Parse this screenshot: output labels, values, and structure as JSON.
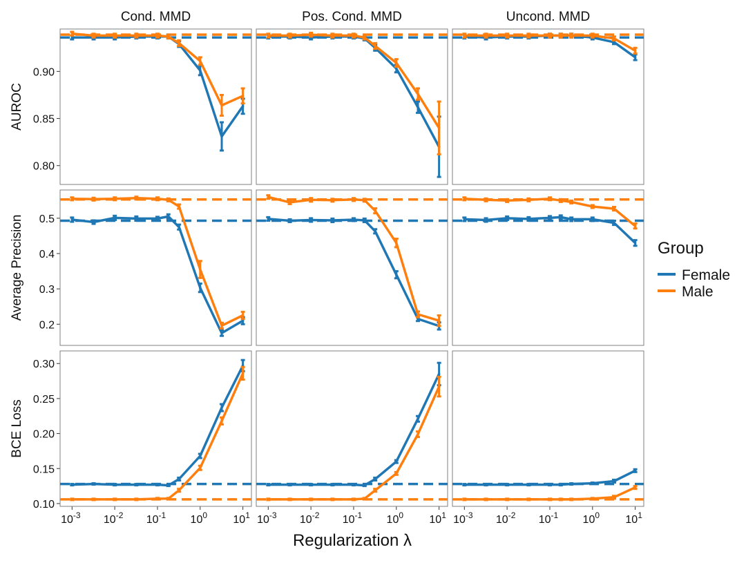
{
  "colors": {
    "Female": "#1f77b4",
    "Male": "#ff7f0e"
  },
  "chart_data": {
    "type": "line",
    "facet_columns": [
      "Cond. MMD",
      "Pos. Cond. MMD",
      "Uncond. MMD"
    ],
    "facet_rows": [
      "AUROC",
      "Average Precision",
      "BCE Loss"
    ],
    "xlabel": "Regularization λ",
    "x_scale": "log",
    "x_tick_exponents": [
      "-3",
      "-2",
      "-1",
      "0",
      "1"
    ],
    "x": [
      0.001,
      0.0032,
      0.01,
      0.032,
      0.1,
      0.18,
      0.32,
      1,
      3.2,
      10
    ],
    "legend": {
      "title": "Group",
      "position": "right",
      "entries": [
        "Female",
        "Male"
      ]
    },
    "y_ticks": {
      "AUROC": [
        "0.80",
        "0.85",
        "0.90"
      ],
      "Average Precision": [
        "0.2",
        "0.3",
        "0.4",
        "0.5"
      ],
      "BCE Loss": [
        "0.10",
        "0.15",
        "0.20",
        "0.25",
        "0.30"
      ]
    },
    "y_ranges": {
      "AUROC": [
        0.78,
        0.945
      ],
      "Average Precision": [
        0.14,
        0.58
      ],
      "BCE Loss": [
        0.096,
        0.318
      ]
    },
    "baselines": {
      "AUROC": {
        "Female": 0.936,
        "Male": 0.939
      },
      "Average Precision": {
        "Female": 0.493,
        "Male": 0.553
      },
      "BCE Loss": {
        "Female": 0.128,
        "Male": 0.106
      }
    },
    "panels": [
      {
        "row": "AUROC",
        "column": "Cond. MMD",
        "series": [
          {
            "name": "Female",
            "y": [
              0.936,
              0.936,
              0.936,
              0.937,
              0.937,
              0.937,
              0.929,
              0.901,
              0.831,
              0.863
            ],
            "err": [
              0.002,
              0.002,
              0.002,
              0.002,
              0.002,
              0.002,
              0.003,
              0.005,
              0.015,
              0.008
            ]
          },
          {
            "name": "Male",
            "y": [
              0.94,
              0.938,
              0.938,
              0.938,
              0.938,
              0.937,
              0.93,
              0.911,
              0.864,
              0.874
            ],
            "err": [
              0.002,
              0.002,
              0.002,
              0.002,
              0.002,
              0.002,
              0.003,
              0.004,
              0.011,
              0.008
            ]
          }
        ]
      },
      {
        "row": "AUROC",
        "column": "Pos. Cond. MMD",
        "series": [
          {
            "name": "Female",
            "y": [
              0.937,
              0.937,
              0.936,
              0.937,
              0.937,
              0.935,
              0.925,
              0.903,
              0.862,
              0.82
            ],
            "err": [
              0.002,
              0.002,
              0.002,
              0.002,
              0.002,
              0.002,
              0.003,
              0.004,
              0.006,
              0.032
            ]
          },
          {
            "name": "Male",
            "y": [
              0.938,
              0.938,
              0.939,
              0.938,
              0.938,
              0.936,
              0.927,
              0.909,
              0.876,
              0.84
            ],
            "err": [
              0.002,
              0.002,
              0.002,
              0.002,
              0.002,
              0.002,
              0.003,
              0.004,
              0.006,
              0.028
            ]
          }
        ]
      },
      {
        "row": "AUROC",
        "column": "Uncond. MMD",
        "series": [
          {
            "name": "Female",
            "y": [
              0.937,
              0.936,
              0.937,
              0.937,
              0.938,
              0.938,
              0.938,
              0.936,
              0.931,
              0.915
            ],
            "err": [
              0.002,
              0.002,
              0.002,
              0.002,
              0.002,
              0.002,
              0.002,
              0.002,
              0.002,
              0.003
            ]
          },
          {
            "name": "Male",
            "y": [
              0.938,
              0.938,
              0.938,
              0.938,
              0.938,
              0.938,
              0.938,
              0.938,
              0.935,
              0.922
            ],
            "err": [
              0.002,
              0.002,
              0.002,
              0.002,
              0.002,
              0.002,
              0.002,
              0.002,
              0.002,
              0.003
            ]
          }
        ]
      },
      {
        "row": "Average Precision",
        "column": "Cond. MMD",
        "series": [
          {
            "name": "Female",
            "y": [
              0.496,
              0.489,
              0.501,
              0.499,
              0.499,
              0.505,
              0.475,
              0.303,
              0.175,
              0.21
            ],
            "err": [
              0.006,
              0.005,
              0.006,
              0.006,
              0.005,
              0.006,
              0.007,
              0.012,
              0.008,
              0.01
            ]
          },
          {
            "name": "Male",
            "y": [
              0.555,
              0.554,
              0.555,
              0.557,
              0.555,
              0.552,
              0.533,
              0.355,
              0.196,
              0.225
            ],
            "err": [
              0.004,
              0.004,
              0.004,
              0.004,
              0.004,
              0.004,
              0.006,
              0.024,
              0.008,
              0.01
            ]
          }
        ]
      },
      {
        "row": "Average Precision",
        "column": "Pos. Cond. MMD",
        "series": [
          {
            "name": "Female",
            "y": [
              0.498,
              0.493,
              0.495,
              0.494,
              0.496,
              0.494,
              0.463,
              0.34,
              0.215,
              0.195
            ],
            "err": [
              0.005,
              0.004,
              0.005,
              0.005,
              0.004,
              0.005,
              0.006,
              0.01,
              0.006,
              0.01
            ]
          },
          {
            "name": "Male",
            "y": [
              0.56,
              0.545,
              0.552,
              0.551,
              0.553,
              0.551,
              0.521,
              0.43,
              0.228,
              0.21
            ],
            "err": [
              0.005,
              0.005,
              0.005,
              0.004,
              0.004,
              0.004,
              0.007,
              0.012,
              0.008,
              0.015
            ]
          }
        ]
      },
      {
        "row": "Average Precision",
        "column": "Uncond. MMD",
        "series": [
          {
            "name": "Female",
            "y": [
              0.497,
              0.495,
              0.5,
              0.498,
              0.501,
              0.503,
              0.497,
              0.497,
              0.487,
              0.43
            ],
            "err": [
              0.005,
              0.005,
              0.005,
              0.005,
              0.005,
              0.005,
              0.005,
              0.005,
              0.006,
              0.008
            ]
          },
          {
            "name": "Male",
            "y": [
              0.555,
              0.552,
              0.55,
              0.552,
              0.555,
              0.55,
              0.546,
              0.533,
              0.527,
              0.478
            ],
            "err": [
              0.004,
              0.004,
              0.004,
              0.004,
              0.004,
              0.004,
              0.004,
              0.004,
              0.005,
              0.007
            ]
          }
        ]
      },
      {
        "row": "BCE Loss",
        "column": "Cond. MMD",
        "series": [
          {
            "name": "Female",
            "y": [
              0.127,
              0.128,
              0.127,
              0.127,
              0.127,
              0.126,
              0.135,
              0.168,
              0.237,
              0.297
            ],
            "err": [
              0.001,
              0.001,
              0.001,
              0.001,
              0.001,
              0.001,
              0.002,
              0.003,
              0.005,
              0.008
            ]
          },
          {
            "name": "Male",
            "y": [
              0.106,
              0.106,
              0.106,
              0.106,
              0.107,
              0.107,
              0.119,
              0.151,
              0.218,
              0.286
            ],
            "err": [
              0.001,
              0.001,
              0.001,
              0.001,
              0.001,
              0.001,
              0.002,
              0.003,
              0.005,
              0.009
            ]
          }
        ]
      },
      {
        "row": "BCE Loss",
        "column": "Pos. Cond. MMD",
        "series": [
          {
            "name": "Female",
            "y": [
              0.127,
              0.127,
              0.127,
              0.127,
              0.127,
              0.126,
              0.135,
              0.16,
              0.221,
              0.285
            ],
            "err": [
              0.001,
              0.001,
              0.001,
              0.001,
              0.001,
              0.001,
              0.002,
              0.002,
              0.004,
              0.016
            ]
          },
          {
            "name": "Male",
            "y": [
              0.106,
              0.106,
              0.106,
              0.106,
              0.106,
              0.107,
              0.119,
              0.143,
              0.199,
              0.267
            ],
            "err": [
              0.001,
              0.001,
              0.001,
              0.001,
              0.001,
              0.001,
              0.002,
              0.002,
              0.004,
              0.014
            ]
          }
        ]
      },
      {
        "row": "BCE Loss",
        "column": "Uncond. MMD",
        "series": [
          {
            "name": "Female",
            "y": [
              0.127,
              0.127,
              0.127,
              0.127,
              0.127,
              0.127,
              0.128,
              0.129,
              0.132,
              0.147
            ],
            "err": [
              0.001,
              0.001,
              0.001,
              0.001,
              0.001,
              0.001,
              0.001,
              0.001,
              0.002,
              0.002
            ]
          },
          {
            "name": "Male",
            "y": [
              0.106,
              0.106,
              0.106,
              0.106,
              0.106,
              0.106,
              0.106,
              0.107,
              0.109,
              0.123
            ],
            "err": [
              0.001,
              0.001,
              0.001,
              0.001,
              0.001,
              0.001,
              0.001,
              0.001,
              0.002,
              0.002
            ]
          }
        ]
      }
    ]
  }
}
